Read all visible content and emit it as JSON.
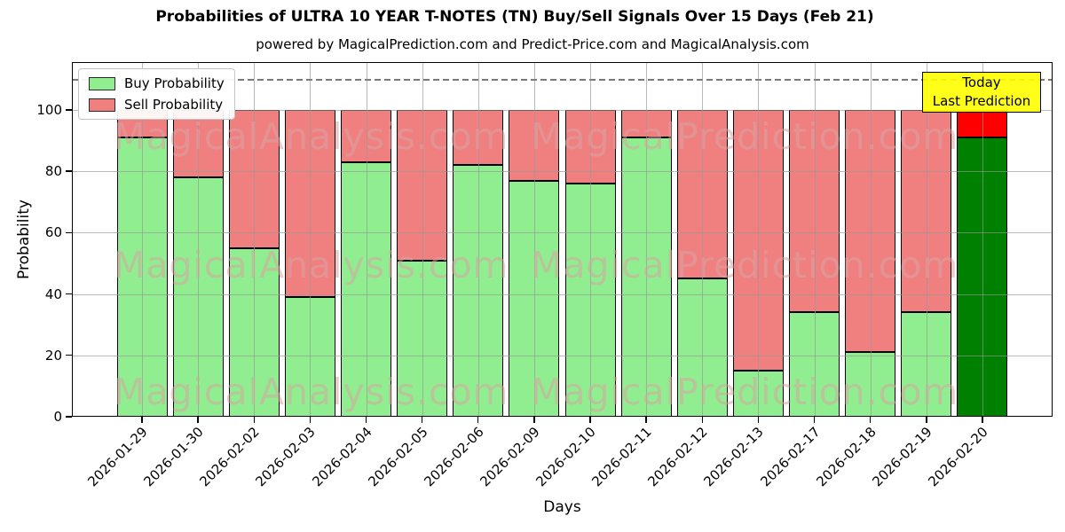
{
  "title": "Probabilities of ULTRA 10 YEAR T-NOTES (TN) Buy/Sell Signals Over 15 Days (Feb 21)",
  "subtitle": "powered by MagicalPrediction.com and Predict-Price.com and MagicalAnalysis.com",
  "legend": {
    "items": [
      {
        "label": "Buy Probability",
        "color": "#90EE90"
      },
      {
        "label": "Sell Probability",
        "color": "#F08080"
      }
    ]
  },
  "annotation": {
    "line1": "Today",
    "line2": "Last Prediction",
    "bg": "#FFFF00"
  },
  "axes": {
    "ylabel": "Probability",
    "xlabel": "Days",
    "yticks": [
      0,
      20,
      40,
      60,
      80,
      100
    ],
    "dashed_y": 110
  },
  "watermark": {
    "left_text": "MagicalAnalysis.com",
    "right_text": "MagicalPrediction.com"
  },
  "chart_data": {
    "type": "bar",
    "stacked": true,
    "title": "Probabilities of ULTRA 10 YEAR T-NOTES (TN) Buy/Sell Signals Over 15 Days (Feb 21)",
    "xlabel": "Days",
    "ylabel": "Probability",
    "ylim": [
      0,
      115.6
    ],
    "grid": true,
    "legend_position": "upper-left",
    "categories": [
      "2026-01-29",
      "2026-01-30",
      "2026-02-02",
      "2026-02-03",
      "2026-02-04",
      "2026-02-05",
      "2026-02-06",
      "2026-02-09",
      "2026-02-10",
      "2026-02-11",
      "2026-02-12",
      "2026-02-13",
      "2026-02-17",
      "2026-02-18",
      "2026-02-19",
      "2026-02-20"
    ],
    "series": [
      {
        "name": "Buy Probability",
        "color": "#90EE90",
        "values": [
          91,
          78,
          55,
          39,
          83,
          51,
          82,
          77,
          76,
          91,
          45,
          15,
          34,
          21,
          34,
          91
        ]
      },
      {
        "name": "Sell Probability",
        "color": "#F08080",
        "values": [
          9,
          22,
          45,
          61,
          17,
          49,
          18,
          23,
          24,
          9,
          55,
          85,
          66,
          79,
          66,
          9
        ]
      }
    ],
    "emphasis_index": 15,
    "emphasis_colors": {
      "buy": "#008000",
      "sell": "#FF0000"
    },
    "threshold_line_y": 110
  }
}
